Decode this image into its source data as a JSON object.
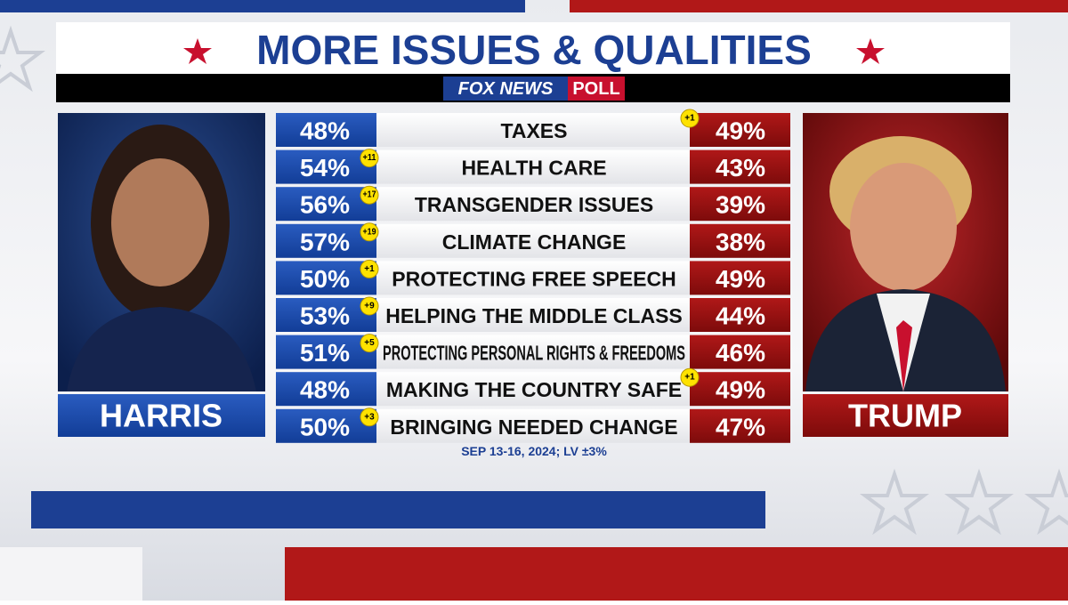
{
  "title": "MORE ISSUES & QUALITIES",
  "brand": {
    "name": "FOX NEWS",
    "tag": "POLL"
  },
  "candidates": {
    "left": "HARRIS",
    "right": "TRUMP"
  },
  "rows": [
    {
      "issue": "TAXES",
      "harris": "48%",
      "trump": "49%",
      "lead": "+1",
      "leader": "trump"
    },
    {
      "issue": "HEALTH CARE",
      "harris": "54%",
      "trump": "43%",
      "lead": "+11",
      "leader": "harris"
    },
    {
      "issue": "TRANSGENDER ISSUES",
      "harris": "56%",
      "trump": "39%",
      "lead": "+17",
      "leader": "harris"
    },
    {
      "issue": "CLIMATE CHANGE",
      "harris": "57%",
      "trump": "38%",
      "lead": "+19",
      "leader": "harris"
    },
    {
      "issue": "PROTECTING FREE SPEECH",
      "harris": "50%",
      "trump": "49%",
      "lead": "+1",
      "leader": "harris"
    },
    {
      "issue": "HELPING THE MIDDLE CLASS",
      "harris": "53%",
      "trump": "44%",
      "lead": "+9",
      "leader": "harris"
    },
    {
      "issue": "PROTECTING PERSONAL RIGHTS & FREEDOMS",
      "harris": "51%",
      "trump": "46%",
      "lead": "+5",
      "leader": "harris"
    },
    {
      "issue": "MAKING THE COUNTRY SAFE",
      "harris": "48%",
      "trump": "49%",
      "lead": "+1",
      "leader": "trump"
    },
    {
      "issue": "BRINGING NEEDED CHANGE",
      "harris": "50%",
      "trump": "47%",
      "lead": "+3",
      "leader": "harris"
    }
  ],
  "footnote": "SEP 13-16, 2024; LV ±3%"
}
